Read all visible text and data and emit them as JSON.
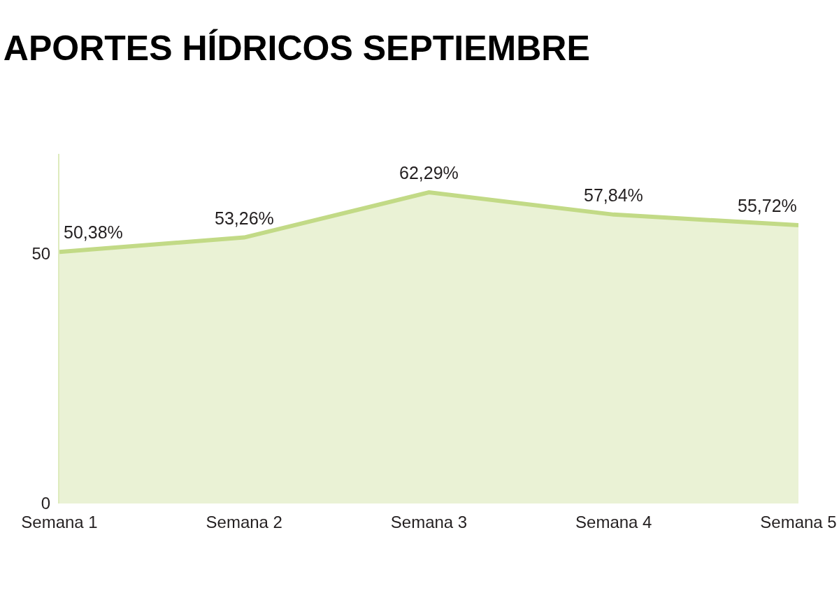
{
  "chart_data": {
    "type": "area",
    "title": "APORTES HÍDRICOS SEPTIEMBRE",
    "categories": [
      "Semana 1",
      "Semana 2",
      "Semana 3",
      "Semana 4",
      "Semana 5"
    ],
    "values": [
      50.38,
      53.26,
      62.29,
      57.84,
      55.72
    ],
    "value_labels": [
      "50,38%",
      "53,26%",
      "62,29%",
      "57,84%",
      "55,72%"
    ],
    "color": "#c2da86",
    "ylim": [
      0,
      70
    ],
    "yticks": [
      0,
      50
    ]
  }
}
